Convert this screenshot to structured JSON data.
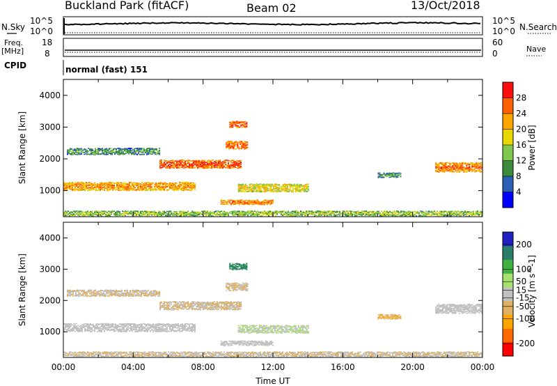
{
  "header": {
    "title": "Buckland Park (fitACF)",
    "beam": "Beam 02",
    "date": "13/Oct/2018"
  },
  "top_panels": {
    "nsky_label": "N.Sky",
    "nsearch_label": "N.Search",
    "freq_label": "Freq.",
    "freq_unit": "[MHz]",
    "nave_label": "Nave",
    "cpid_label": "CPID",
    "cpid_text": "normal (fast) 151",
    "noise_ticks": [
      "10^5",
      "10^0"
    ],
    "freq_ticks": [
      "18",
      "8"
    ],
    "nave_ticks": [
      "60",
      "0"
    ]
  },
  "colors": {
    "power_scale": [
      "#0000ff",
      "#2a5fb5",
      "#3c8a3c",
      "#7ec850",
      "#e8d800",
      "#ffa500",
      "#ff6000",
      "#ff1010"
    ],
    "velocity_scale": [
      "#ff0000",
      "#ff6a00",
      "#ffa500",
      "#e0b060",
      "#c0c0c0",
      "#a8e070",
      "#40b040",
      "#2a7d6a",
      "#2020c0"
    ]
  },
  "chart_data": [
    {
      "type": "heatmap",
      "name": "power",
      "xlabel": "",
      "ylabel": "Slant Range [km]",
      "xlim": [
        "00:00",
        "24:00"
      ],
      "ylim": [
        180,
        4500
      ],
      "yticks": [
        1000,
        2000,
        3000,
        4000
      ],
      "colorbar": {
        "label": "Power [dB]",
        "ticks": [
          4,
          8,
          12,
          16,
          20,
          24,
          28
        ],
        "range": [
          0,
          32
        ]
      },
      "echo_bands": [
        {
          "start_h": 0.0,
          "end_h": 7.5,
          "center_km": 1150,
          "width_km": 260,
          "value_db": 24
        },
        {
          "start_h": 5.5,
          "end_h": 10.2,
          "center_km": 1850,
          "width_km": 260,
          "value_db": 28
        },
        {
          "start_h": 0.2,
          "end_h": 5.5,
          "center_km": 2250,
          "width_km": 200,
          "value_db": 12
        },
        {
          "start_h": 9.3,
          "end_h": 10.5,
          "center_km": 2450,
          "width_km": 250,
          "value_db": 27
        },
        {
          "start_h": 9.5,
          "end_h": 10.5,
          "center_km": 3100,
          "width_km": 200,
          "value_db": 28
        },
        {
          "start_h": 10.0,
          "end_h": 14.0,
          "center_km": 1100,
          "width_km": 250,
          "value_db": 20
        },
        {
          "start_h": 9.0,
          "end_h": 12.0,
          "center_km": 650,
          "width_km": 150,
          "value_db": 26
        },
        {
          "start_h": 18.0,
          "end_h": 19.3,
          "center_km": 1500,
          "width_km": 150,
          "value_db": 12
        },
        {
          "start_h": 21.3,
          "end_h": 24.0,
          "center_km": 1750,
          "width_km": 300,
          "value_db": 26
        },
        {
          "start_h": 0.0,
          "end_h": 24.0,
          "center_km": 300,
          "width_km": 150,
          "value_db": 16
        }
      ]
    },
    {
      "type": "heatmap",
      "name": "velocity",
      "xlabel": "Time UT",
      "ylabel": "Slant Range [km]",
      "xlim": [
        "00:00",
        "24:00"
      ],
      "xticks": [
        "00:00",
        "04:00",
        "08:00",
        "12:00",
        "16:00",
        "20:00",
        "00:00"
      ],
      "ylim": [
        180,
        4500
      ],
      "yticks": [
        1000,
        2000,
        3000,
        4000
      ],
      "colorbar": {
        "label": "Velocity [m s^-1]",
        "ticks": [
          -200,
          -100,
          -50,
          -15,
          15,
          50,
          100,
          200
        ],
        "range": [
          -250,
          250
        ]
      },
      "echo_bands": [
        {
          "start_h": 0.0,
          "end_h": 7.5,
          "center_km": 1150,
          "width_km": 260,
          "value_ms": 0
        },
        {
          "start_h": 5.5,
          "end_h": 10.2,
          "center_km": 1850,
          "width_km": 260,
          "value_ms": -30
        },
        {
          "start_h": 0.2,
          "end_h": 5.5,
          "center_km": 2250,
          "width_km": 200,
          "value_ms": -25
        },
        {
          "start_h": 9.3,
          "end_h": 10.5,
          "center_km": 2450,
          "width_km": 250,
          "value_ms": -30
        },
        {
          "start_h": 9.5,
          "end_h": 10.5,
          "center_km": 3100,
          "width_km": 200,
          "value_ms": 150
        },
        {
          "start_h": 10.0,
          "end_h": 14.0,
          "center_km": 1100,
          "width_km": 250,
          "value_ms": 25
        },
        {
          "start_h": 9.0,
          "end_h": 12.0,
          "center_km": 650,
          "width_km": 150,
          "value_ms": 0
        },
        {
          "start_h": 18.0,
          "end_h": 19.3,
          "center_km": 1500,
          "width_km": 150,
          "value_ms": -70
        },
        {
          "start_h": 21.3,
          "end_h": 24.0,
          "center_km": 1750,
          "width_km": 300,
          "value_ms": 0
        },
        {
          "start_h": 0.0,
          "end_h": 24.0,
          "center_km": 300,
          "width_km": 150,
          "value_ms": -25
        }
      ]
    }
  ]
}
